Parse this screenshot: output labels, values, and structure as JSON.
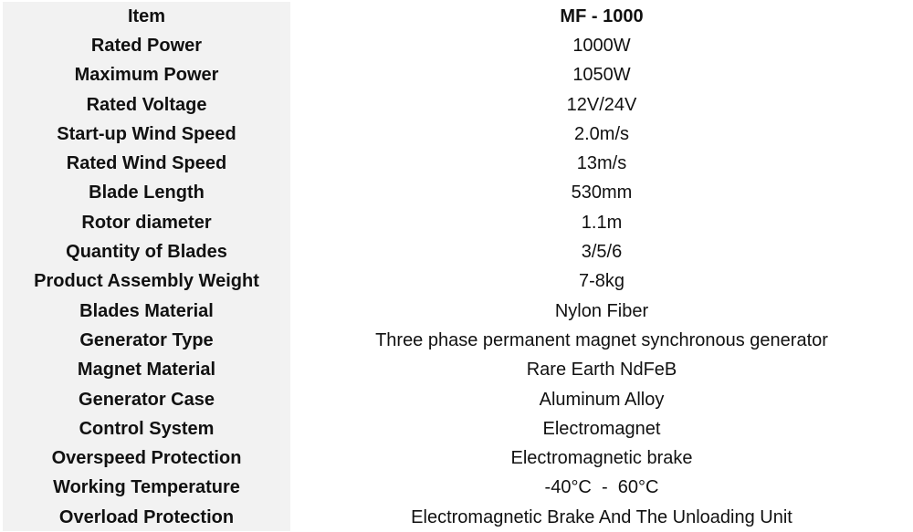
{
  "rows": [
    {
      "label": "Item",
      "value": "MF - 1000"
    },
    {
      "label": "Rated Power",
      "value": "1000W"
    },
    {
      "label": "Maximum Power",
      "value": "1050W"
    },
    {
      "label": "Rated Voltage",
      "value": "12V/24V"
    },
    {
      "label": "Start-up Wind Speed",
      "value": "2.0m/s"
    },
    {
      "label": "Rated Wind Speed",
      "value": "13m/s"
    },
    {
      "label": "Blade Length",
      "value": "530mm"
    },
    {
      "label": "Rotor diameter",
      "value": "1.1m"
    },
    {
      "label": "Quantity of Blades",
      "value": "3/5/6"
    },
    {
      "label": "Product Assembly Weight",
      "value": "7-8kg"
    },
    {
      "label": "Blades Material",
      "value": "Nylon Fiber"
    },
    {
      "label": "Generator Type",
      "value": "Three phase permanent magnet synchronous generator"
    },
    {
      "label": "Magnet Material",
      "value": "Rare Earth NdFeB"
    },
    {
      "label": "Generator Case",
      "value": "Aluminum Alloy"
    },
    {
      "label": "Control System",
      "value": "Electromagnet"
    },
    {
      "label": "Overspeed Protection",
      "value": "Electromagnetic brake"
    },
    {
      "label": "Working Temperature",
      "value": "-40°C  -  60°C"
    },
    {
      "label": "Overload Protection",
      "value": "Electromagnetic Brake And The Unloading Unit"
    }
  ]
}
